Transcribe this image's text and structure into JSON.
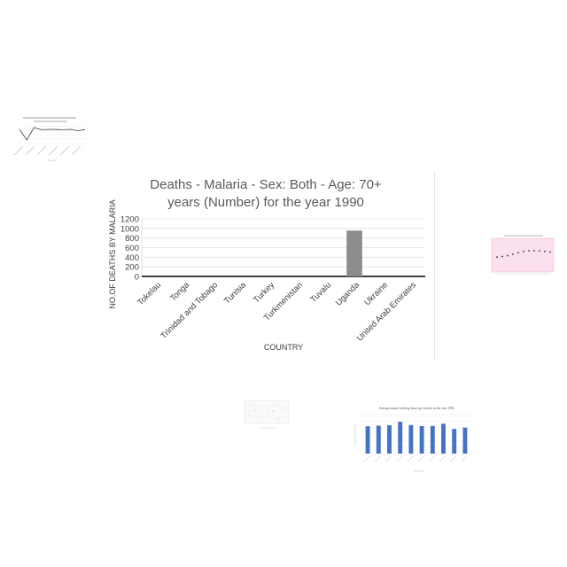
{
  "chart_data": [
    {
      "id": "main",
      "type": "bar",
      "title_lines": [
        "Deaths - Malaria - Sex: Both - Age: 70+",
        "years (Number) for the year 1990"
      ],
      "xlabel": "COUNTRY",
      "ylabel": "NO.OF DEATHS BY MALARIA",
      "categories": [
        "Tokelau",
        "Tonga",
        "Trinidad and Tobago",
        "Tunisia",
        "Turkey",
        "Turkmenistan",
        "Tuvalu",
        "Uganda",
        "Ukraine",
        "United Arab Emirates"
      ],
      "values": [
        0,
        0,
        0,
        0,
        0,
        0,
        0,
        955,
        0,
        0
      ],
      "yticks": [
        0,
        200,
        400,
        600,
        800,
        1000,
        1200
      ],
      "ylim": [
        0,
        1200
      ],
      "bar_color": "#8c8c8c",
      "grid": true
    },
    {
      "id": "thumb-top-left",
      "type": "line",
      "values": [
        80,
        20,
        90,
        78,
        80,
        79,
        78,
        80,
        72,
        79
      ],
      "ylim": [
        0,
        100
      ],
      "line_color": "#404040"
    },
    {
      "id": "thumb-right-pink",
      "type": "scatter",
      "values": [
        40,
        42,
        45,
        50,
        55,
        60,
        62,
        63,
        62,
        60,
        58
      ],
      "ylim": [
        0,
        100
      ],
      "background": "#fbe0ef",
      "point_color": "#333333"
    },
    {
      "id": "thumb-bottom-middle",
      "type": "scatter",
      "values": [],
      "ylim": [
        0,
        100
      ]
    },
    {
      "id": "thumb-bottom-right",
      "type": "bar",
      "title": "Average annual working hours per worker in the year 1992",
      "values": [
        2100,
        2150,
        2180,
        2450,
        2200,
        2120,
        2130,
        2300,
        1900,
        2000
      ],
      "ylim": [
        0,
        3000
      ],
      "bar_color": "#4472c4"
    }
  ]
}
